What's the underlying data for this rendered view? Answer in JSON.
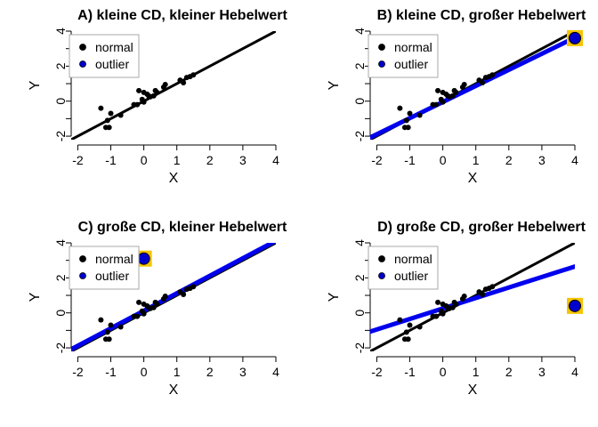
{
  "chart_data": [
    {
      "type": "scatter",
      "title": "A)  kleine CD, kleiner Hebelwert",
      "xlabel": "X",
      "ylabel": "Y",
      "xlim": [
        -2.2,
        4.0
      ],
      "ylim": [
        -2.2,
        4.0
      ],
      "xticks": [
        "-2",
        "-1",
        "0",
        "1",
        "2",
        "3",
        "4"
      ],
      "yticks": [
        "-2",
        "0",
        "2",
        "4"
      ],
      "legend": {
        "position": "top-left",
        "entries": [
          "normal",
          "outlier"
        ]
      },
      "series": [
        {
          "name": "normal",
          "color": "#000000",
          "points": [
            [
              -1.3,
              -0.4
            ],
            [
              -1.1,
              -1.1
            ],
            [
              -1.15,
              -1.5
            ],
            [
              -1.05,
              -1.5
            ],
            [
              -1.0,
              -0.7
            ],
            [
              -0.7,
              -0.8
            ],
            [
              -0.3,
              -0.2
            ],
            [
              -0.2,
              -0.2
            ],
            [
              -0.15,
              0.6
            ],
            [
              -0.05,
              0.1
            ],
            [
              0.0,
              -0.05
            ],
            [
              0.0,
              0.5
            ],
            [
              0.1,
              0.4
            ],
            [
              0.15,
              0.3
            ],
            [
              0.2,
              0.25
            ],
            [
              0.3,
              0.3
            ],
            [
              0.35,
              0.6
            ],
            [
              0.4,
              0.5
            ],
            [
              0.6,
              0.8
            ],
            [
              0.65,
              0.95
            ],
            [
              1.1,
              1.2
            ],
            [
              1.2,
              1.05
            ],
            [
              1.3,
              1.35
            ],
            [
              1.4,
              1.4
            ],
            [
              1.5,
              1.5
            ]
          ]
        },
        {
          "name": "outlier",
          "color": "#0000cc",
          "points": []
        }
      ],
      "lines": [
        {
          "color": "#000000",
          "width": 3,
          "intercept": 0.0,
          "slope": 1.0
        }
      ]
    },
    {
      "type": "scatter",
      "title": "B)  kleine CD, großer Hebelwert",
      "xlabel": "X",
      "ylabel": "Y",
      "xlim": [
        -2.2,
        4.0
      ],
      "ylim": [
        -2.2,
        4.0
      ],
      "xticks": [
        "-2",
        "-1",
        "0",
        "1",
        "2",
        "3",
        "4"
      ],
      "yticks": [
        "-2",
        "0",
        "2",
        "4"
      ],
      "legend": {
        "position": "top-left",
        "entries": [
          "normal",
          "outlier"
        ]
      },
      "series": [
        {
          "name": "normal",
          "color": "#000000",
          "points": [
            [
              -1.3,
              -0.4
            ],
            [
              -1.1,
              -1.1
            ],
            [
              -1.15,
              -1.5
            ],
            [
              -1.05,
              -1.5
            ],
            [
              -1.0,
              -0.7
            ],
            [
              -0.7,
              -0.8
            ],
            [
              -0.3,
              -0.2
            ],
            [
              -0.2,
              -0.2
            ],
            [
              -0.15,
              0.6
            ],
            [
              -0.05,
              0.1
            ],
            [
              0.0,
              -0.05
            ],
            [
              0.0,
              0.5
            ],
            [
              0.1,
              0.4
            ],
            [
              0.15,
              0.3
            ],
            [
              0.2,
              0.25
            ],
            [
              0.3,
              0.3
            ],
            [
              0.35,
              0.6
            ],
            [
              0.4,
              0.5
            ],
            [
              0.6,
              0.8
            ],
            [
              0.65,
              0.95
            ],
            [
              1.1,
              1.2
            ],
            [
              1.2,
              1.05
            ],
            [
              1.3,
              1.35
            ],
            [
              1.4,
              1.4
            ],
            [
              1.5,
              1.5
            ]
          ]
        },
        {
          "name": "outlier",
          "color": "#0000cc",
          "points": [
            [
              4.0,
              3.6
            ]
          ]
        }
      ],
      "lines": [
        {
          "color": "#000000",
          "width": 3,
          "intercept": 0.0,
          "slope": 1.0
        },
        {
          "color": "#0000ee",
          "width": 5,
          "intercept": -0.05,
          "slope": 0.92
        }
      ]
    },
    {
      "type": "scatter",
      "title": "C)  große CD, kleiner Hebelwert",
      "xlabel": "X",
      "ylabel": "Y",
      "xlim": [
        -2.2,
        4.0
      ],
      "ylim": [
        -2.2,
        4.0
      ],
      "xticks": [
        "-2",
        "-1",
        "0",
        "1",
        "2",
        "3",
        "4"
      ],
      "yticks": [
        "-2",
        "0",
        "2",
        "4"
      ],
      "legend": {
        "position": "top-left",
        "entries": [
          "normal",
          "outlier"
        ]
      },
      "series": [
        {
          "name": "normal",
          "color": "#000000",
          "points": [
            [
              -1.3,
              -0.4
            ],
            [
              -1.1,
              -1.1
            ],
            [
              -1.15,
              -1.5
            ],
            [
              -1.05,
              -1.5
            ],
            [
              -1.0,
              -0.7
            ],
            [
              -0.7,
              -0.8
            ],
            [
              -0.3,
              -0.2
            ],
            [
              -0.2,
              -0.2
            ],
            [
              -0.15,
              0.6
            ],
            [
              -0.05,
              0.1
            ],
            [
              0.0,
              -0.05
            ],
            [
              0.0,
              0.5
            ],
            [
              0.1,
              0.4
            ],
            [
              0.15,
              0.3
            ],
            [
              0.2,
              0.25
            ],
            [
              0.3,
              0.3
            ],
            [
              0.35,
              0.6
            ],
            [
              0.4,
              0.5
            ],
            [
              0.6,
              0.8
            ],
            [
              0.65,
              0.95
            ],
            [
              1.1,
              1.2
            ],
            [
              1.2,
              1.05
            ],
            [
              1.3,
              1.35
            ],
            [
              1.4,
              1.4
            ],
            [
              1.5,
              1.5
            ]
          ]
        },
        {
          "name": "outlier",
          "color": "#0000cc",
          "points": [
            [
              0.0,
              3.1
            ]
          ]
        }
      ],
      "lines": [
        {
          "color": "#000000",
          "width": 3,
          "intercept": 0.0,
          "slope": 1.0
        },
        {
          "color": "#0000ee",
          "width": 5,
          "intercept": 0.12,
          "slope": 1.0
        }
      ]
    },
    {
      "type": "scatter",
      "title": "D)  große CD, großer Hebelwert",
      "xlabel": "X",
      "ylabel": "Y",
      "xlim": [
        -2.2,
        4.0
      ],
      "ylim": [
        -2.2,
        4.0
      ],
      "xticks": [
        "-2",
        "-1",
        "0",
        "1",
        "2",
        "3",
        "4"
      ],
      "yticks": [
        "-2",
        "0",
        "2",
        "4"
      ],
      "legend": {
        "position": "top-left",
        "entries": [
          "normal",
          "outlier"
        ]
      },
      "series": [
        {
          "name": "normal",
          "color": "#000000",
          "points": [
            [
              -1.3,
              -0.4
            ],
            [
              -1.1,
              -1.1
            ],
            [
              -1.15,
              -1.5
            ],
            [
              -1.05,
              -1.5
            ],
            [
              -1.0,
              -0.7
            ],
            [
              -0.7,
              -0.8
            ],
            [
              -0.3,
              -0.2
            ],
            [
              -0.2,
              -0.2
            ],
            [
              -0.15,
              0.6
            ],
            [
              -0.05,
              0.1
            ],
            [
              0.0,
              -0.05
            ],
            [
              0.0,
              0.5
            ],
            [
              0.1,
              0.4
            ],
            [
              0.15,
              0.3
            ],
            [
              0.2,
              0.25
            ],
            [
              0.3,
              0.3
            ],
            [
              0.35,
              0.6
            ],
            [
              0.4,
              0.5
            ],
            [
              0.6,
              0.8
            ],
            [
              0.65,
              0.95
            ],
            [
              1.1,
              1.2
            ],
            [
              1.2,
              1.05
            ],
            [
              1.3,
              1.35
            ],
            [
              1.4,
              1.4
            ],
            [
              1.5,
              1.5
            ]
          ]
        },
        {
          "name": "outlier",
          "color": "#0000cc",
          "points": [
            [
              4.0,
              0.4
            ]
          ]
        }
      ],
      "lines": [
        {
          "color": "#000000",
          "width": 3,
          "intercept": 0.0,
          "slope": 1.0
        },
        {
          "color": "#0000ee",
          "width": 5,
          "intercept": 0.25,
          "slope": 0.6
        }
      ]
    }
  ],
  "colors": {
    "normal": "#000000",
    "outlier": "#0000cc",
    "highlight": "#f5c400",
    "regression_blue": "#0000ee"
  }
}
